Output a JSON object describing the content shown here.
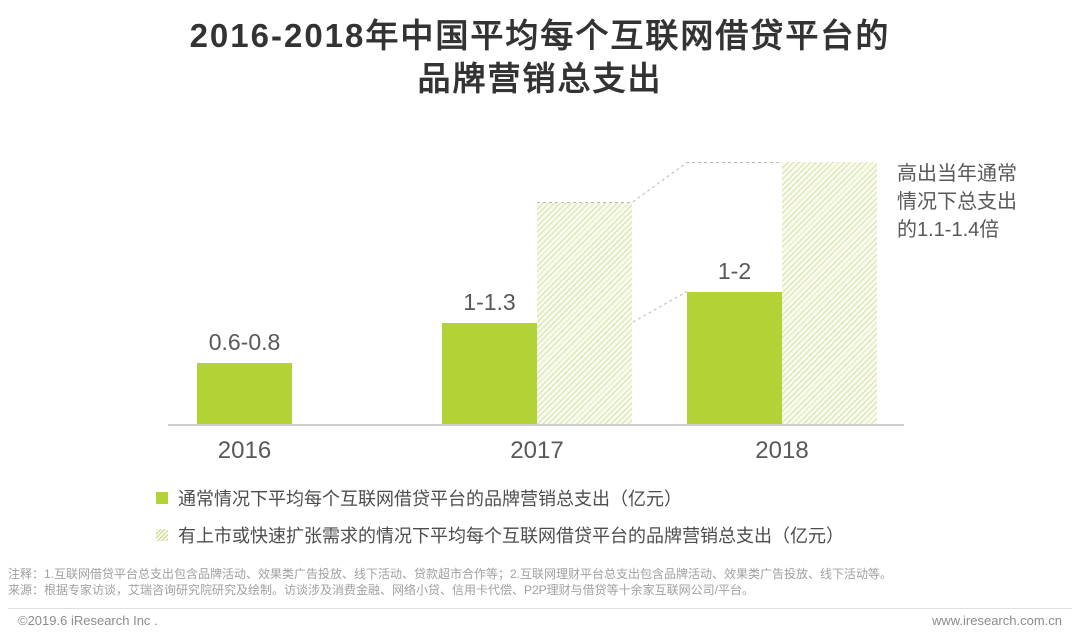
{
  "title": {
    "line1": "2016-2018年中国平均每个互联网借贷平台的",
    "line2": "品牌营销总支出"
  },
  "annotation": {
    "lines": [
      "高出当年通常",
      "情况下总支出",
      "的1.1-1.4倍"
    ]
  },
  "chart_data": {
    "type": "bar",
    "title": "2016-2018年中国平均每个互联网借贷平台的品牌营销总支出",
    "unit": "亿元",
    "categories": [
      "2016",
      "2017",
      "2018"
    ],
    "series": [
      {
        "name": "通常情况下平均每个互联网借贷平台的品牌营销总支出（亿元）",
        "style": "solid",
        "value_labels": [
          "0.6-0.8",
          "1-1.3",
          "1-2"
        ],
        "values_mid": [
          0.7,
          1.15,
          1.5
        ]
      },
      {
        "name": "有上市或快速扩张需求的情况下平均每个互联网借贷平台的品牌营销总支出（亿元）",
        "style": "hatched",
        "value_labels": [
          null,
          null,
          null
        ],
        "values_mid": [
          null,
          2.5,
          2.95
        ],
        "note": "高出当年通常情况下总支出的1.1-1.4倍"
      }
    ],
    "ylim": [
      0,
      3.2
    ],
    "grid": false,
    "legend_position": "bottom-left",
    "colors": {
      "solid_bar": "#b2d235",
      "hatch_line": "#d5e5a5",
      "hatch_bg": "#f8faf0",
      "dash_line": "#bbbbbb"
    }
  },
  "footnotes": {
    "note": "注释：1.互联网借贷平台总支出包含品牌活动、效果类广告投放、线下活动、贷款超市合作等；2.互联网理财平台总支出包含品牌活动、效果类广告投放、线下活动等。",
    "source": "来源：根据专家访谈，艾瑞咨询研究院研究及绘制。访谈涉及消费金融、网络小贷、信用卡代偿、P2P理财与借贷等十余家互联网公司/平台。"
  },
  "footer": {
    "copyright": "©2019.6 iResearch Inc .",
    "website": "www.iresearch.com.cn"
  }
}
